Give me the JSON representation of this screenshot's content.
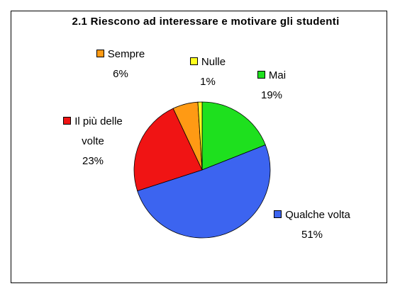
{
  "chart_data": {
    "type": "pie",
    "title": "2.1 Riescono ad interessare e motivare gli studenti",
    "categories": [
      "Mai",
      "Qualche volta",
      "Il più delle volte",
      "Sempre",
      "Nulle"
    ],
    "values": [
      19,
      51,
      23,
      6,
      1
    ],
    "value_labels": [
      "19%",
      "51%",
      "23%",
      "6%",
      "1%"
    ],
    "colors": [
      "#1ee01e",
      "#3c64f0",
      "#f01414",
      "#ff9a14",
      "#ffff1e"
    ]
  }
}
